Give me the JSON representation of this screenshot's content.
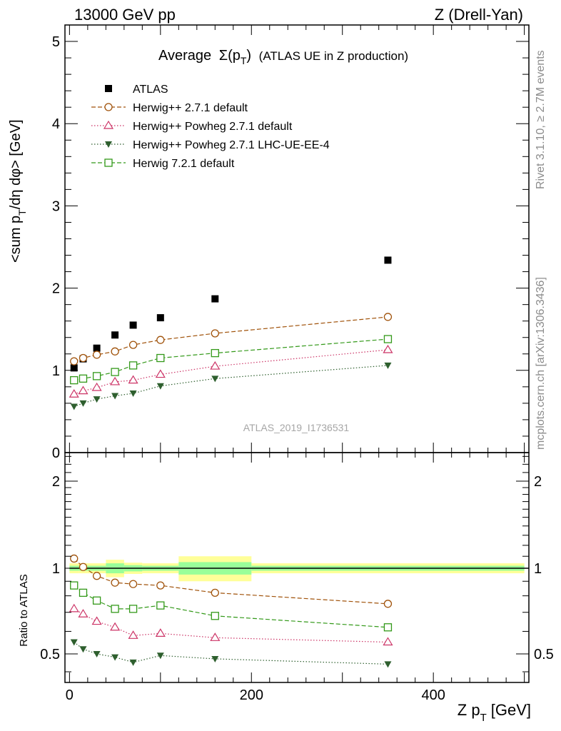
{
  "header": {
    "left": "13000 GeV pp",
    "right": "Z (Drell-Yan)"
  },
  "side_labels": {
    "rivet": "Rivet 3.1.10, ≥ 2.7M events",
    "mcplots": "mcplots.cern.ch [arXiv:1306.3436]"
  },
  "chart_data": [
    {
      "type": "scatter",
      "title": "Average Σ(pT) (ATLAS UE in Z production)",
      "title_parts": {
        "main": "Average",
        "sigma": "Σ(p",
        "sub": "T",
        "close": ")",
        "rest": "(ATLAS UE in Z production)"
      },
      "ylabel": "<sum pT/dη dφ> [GeV]",
      "ylabel_parts": {
        "a": "<sum p",
        "sub": "T",
        "b": "/dη dφ> [GeV]"
      },
      "watermark": "ATLAS_2019_I1736531",
      "xlim": [
        -5,
        505
      ],
      "ylim": [
        0,
        5.2
      ],
      "yticks": [
        0,
        1,
        2,
        3,
        4,
        5
      ],
      "legend_position": "top-left",
      "series": [
        {
          "name": "ATLAS",
          "color": "#000000",
          "marker": "square-filled",
          "line": "none",
          "x": [
            5,
            15,
            30,
            50,
            70,
            100,
            160,
            350
          ],
          "y": [
            1.03,
            1.14,
            1.27,
            1.43,
            1.55,
            1.64,
            1.87,
            2.34
          ]
        },
        {
          "name": "Herwig++ 2.7.1 default",
          "color": "#a0520a",
          "marker": "circle-open",
          "line": "dashed",
          "x": [
            5,
            15,
            30,
            50,
            70,
            100,
            160,
            350
          ],
          "y": [
            1.11,
            1.15,
            1.19,
            1.23,
            1.31,
            1.37,
            1.45,
            1.65
          ]
        },
        {
          "name": "Herwig++ Powheg 2.7.1 default",
          "color": "#cc3366",
          "marker": "triangle-open",
          "line": "dotted",
          "x": [
            5,
            15,
            30,
            50,
            70,
            100,
            160,
            350
          ],
          "y": [
            0.71,
            0.75,
            0.79,
            0.86,
            0.88,
            0.95,
            1.05,
            1.25
          ]
        },
        {
          "name": "Herwig++ Powheg 2.7.1 LHC-UE-EE-4",
          "color": "#2e5f2e",
          "marker": "triangle-down-filled",
          "line": "dotted",
          "x": [
            5,
            15,
            30,
            50,
            70,
            100,
            160,
            350
          ],
          "y": [
            0.56,
            0.6,
            0.65,
            0.69,
            0.72,
            0.81,
            0.9,
            1.06
          ]
        },
        {
          "name": "Herwig 7.2.1 default",
          "color": "#339919",
          "marker": "square-open",
          "line": "dashed",
          "x": [
            5,
            15,
            30,
            50,
            70,
            100,
            160,
            350
          ],
          "y": [
            0.88,
            0.9,
            0.93,
            0.98,
            1.06,
            1.15,
            1.21,
            1.38
          ]
        }
      ]
    },
    {
      "type": "scatter",
      "ylabel": "Ratio to ATLAS",
      "xlabel": "Z pT [GeV]",
      "xlabel_parts": {
        "a": "Z p",
        "sub": "T",
        "b": "[GeV]"
      },
      "xlim": [
        -5,
        505
      ],
      "ylim": [
        0.35,
        2.35
      ],
      "yticks": [
        0.5,
        1,
        2
      ],
      "xticks": [
        0,
        200,
        400
      ],
      "reference_line": 1,
      "uncertainty_bands": [
        {
          "x": [
            0,
            10
          ],
          "total": 0.04,
          "stat": 0.02
        },
        {
          "x": [
            10,
            20
          ],
          "total": 0.04,
          "stat": 0.02
        },
        {
          "x": [
            20,
            40
          ],
          "total": 0.04,
          "stat": 0.02
        },
        {
          "x": [
            40,
            60
          ],
          "total": 0.07,
          "stat": 0.04
        },
        {
          "x": [
            60,
            80
          ],
          "total": 0.045,
          "stat": 0.025
        },
        {
          "x": [
            80,
            120
          ],
          "total": 0.04,
          "stat": 0.02
        },
        {
          "x": [
            120,
            200
          ],
          "total": 0.1,
          "stat": 0.05
        },
        {
          "x": [
            200,
            500
          ],
          "total": 0.04,
          "stat": 0.02
        }
      ],
      "band_colors": {
        "total": "#ffff99",
        "stat": "#99ff99"
      },
      "series": [
        {
          "name": "Herwig++ 2.7.1 default",
          "color": "#a0520a",
          "marker": "circle-open",
          "line": "dashed",
          "x": [
            5,
            15,
            30,
            50,
            70,
            100,
            160,
            350
          ],
          "y": [
            1.08,
            1.01,
            0.94,
            0.89,
            0.88,
            0.87,
            0.82,
            0.75
          ]
        },
        {
          "name": "Herwig++ Powheg 2.7.1 default",
          "color": "#cc3366",
          "marker": "triangle-open",
          "line": "dotted",
          "x": [
            5,
            15,
            30,
            50,
            70,
            100,
            160,
            350
          ],
          "y": [
            0.72,
            0.69,
            0.65,
            0.62,
            0.58,
            0.59,
            0.57,
            0.55
          ]
        },
        {
          "name": "Herwig++ Powheg 2.7.1 LHC-UE-EE-4",
          "color": "#2e5f2e",
          "marker": "triangle-down-filled",
          "line": "dotted",
          "x": [
            5,
            15,
            30,
            50,
            70,
            100,
            160,
            350
          ],
          "y": [
            0.55,
            0.52,
            0.5,
            0.48,
            0.45,
            0.49,
            0.47,
            0.44
          ]
        },
        {
          "name": "Herwig 7.2.1 default",
          "color": "#339919",
          "marker": "square-open",
          "line": "dashed",
          "x": [
            5,
            15,
            30,
            50,
            70,
            100,
            160,
            350
          ],
          "y": [
            0.87,
            0.82,
            0.77,
            0.72,
            0.72,
            0.74,
            0.68,
            0.62
          ]
        }
      ]
    }
  ]
}
